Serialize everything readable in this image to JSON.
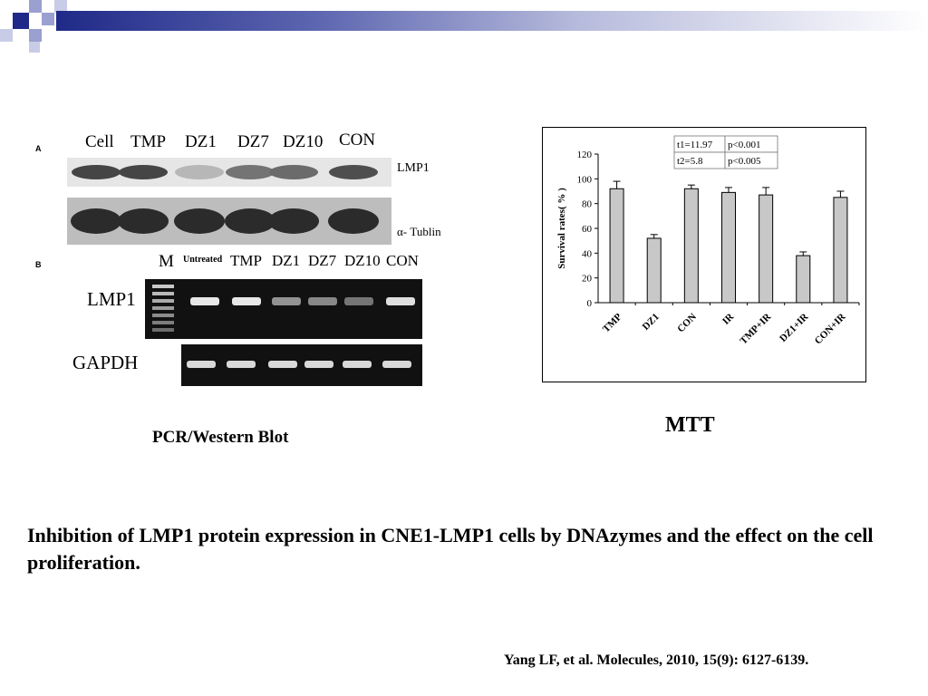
{
  "panel_labels": {
    "a": "A",
    "b": "B"
  },
  "western_blot": {
    "lanes": [
      "Cell",
      "TMP",
      "DZ1",
      "DZ7",
      "DZ10",
      "CON"
    ],
    "row_labels": [
      "LMP1",
      "α- Tublin"
    ],
    "lmp1_band_intensity": [
      0.85,
      0.85,
      0.25,
      0.6,
      0.65,
      0.8
    ]
  },
  "pcr": {
    "lanes": [
      "M",
      "Untreated",
      "TMP",
      "DZ1",
      "DZ7",
      "DZ10",
      "CON"
    ],
    "row_labels": [
      "LMP1",
      "GAPDH"
    ],
    "lmp1_band_intensity": [
      0.9,
      0.9,
      0.45,
      0.4,
      0.3,
      0.85
    ]
  },
  "left_caption": "PCR/Western Blot",
  "right_caption": "MTT",
  "chart_data": {
    "type": "bar",
    "categories": [
      "TMP",
      "DZ1",
      "CON",
      "IR",
      "TMP+IR",
      "DZ1+IR",
      "CON+IR"
    ],
    "values": [
      92,
      52,
      92,
      89,
      87,
      38,
      85
    ],
    "errors": [
      6,
      3,
      3,
      4,
      6,
      3,
      5
    ],
    "ylabel": "Survival rates( % )",
    "ylim": [
      0,
      120
    ],
    "yticks": [
      0,
      20,
      40,
      60,
      80,
      100,
      120
    ],
    "stats_table": [
      [
        "t1=11.97",
        "p<0.001"
      ],
      [
        "t2=5.8",
        "p<0.005"
      ]
    ]
  },
  "main_caption": " Inhibition of LMP1 protein expression in CNE1-LMP1 cells by DNAzymes and the effect on the cell  proliferation.",
  "citation": "Yang LF, et al. Molecules, 2010, 15(9): 6127-6139."
}
